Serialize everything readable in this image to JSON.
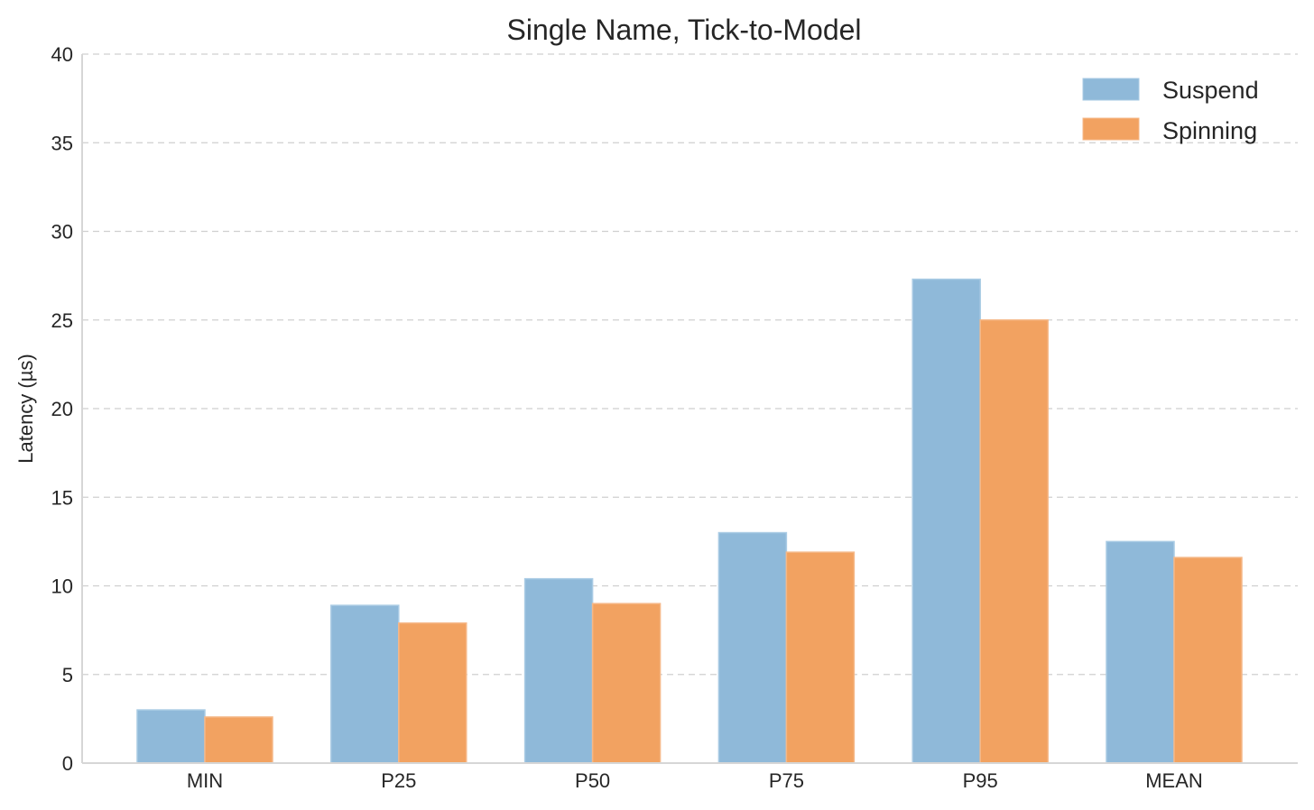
{
  "chart_data": {
    "type": "bar",
    "title": "Single Name, Tick-to-Model",
    "xlabel": "",
    "ylabel": "Latency (µs)",
    "ylim": [
      0,
      40
    ],
    "yticks": [
      0,
      5,
      10,
      15,
      20,
      25,
      30,
      35,
      40
    ],
    "categories": [
      "MIN",
      "P25",
      "P50",
      "P75",
      "P95",
      "MEAN"
    ],
    "series": [
      {
        "name": "Suspend",
        "color": "#8fb9d9",
        "values": [
          3.0,
          8.9,
          10.4,
          13.0,
          27.3,
          12.5
        ]
      },
      {
        "name": "Spinning",
        "color": "#f2a261",
        "values": [
          2.6,
          7.9,
          9.0,
          11.9,
          25.0,
          11.6
        ]
      }
    ],
    "grid": "y-dashed",
    "legend_position": "top-right"
  }
}
